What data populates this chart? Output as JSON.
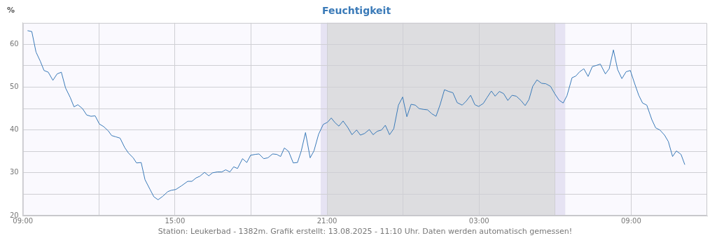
{
  "chart_data": {
    "type": "line",
    "title": "Feuchtigkeit",
    "ylabel": "%",
    "annotations": [
      "Station: Leukerbad - 1382m. Grafik erstellt: 13.08.2025 - 11:10 Uhr. Daten werden automatisch gemessen!"
    ],
    "x": [
      "2025-08-12T09:11",
      "2025-08-12T09:21",
      "2025-08-12T09:31",
      "2025-08-12T09:41",
      "2025-08-12T09:50",
      "2025-08-12T10:00",
      "2025-08-12T10:11",
      "2025-08-12T10:21",
      "2025-08-12T10:31",
      "2025-08-12T10:41",
      "2025-08-12T10:52",
      "2025-08-12T11:01",
      "2025-08-12T11:10",
      "2025-08-12T11:21",
      "2025-08-12T11:31",
      "2025-08-12T11:41",
      "2025-08-12T11:51",
      "2025-08-12T12:01",
      "2025-08-12T12:11",
      "2025-08-12T12:22",
      "2025-08-12T12:30",
      "2025-08-12T12:40",
      "2025-08-12T12:50",
      "2025-08-12T13:01",
      "2025-08-12T13:10",
      "2025-08-12T13:21",
      "2025-08-12T13:29",
      "2025-08-12T13:40",
      "2025-08-12T13:49",
      "2025-08-12T14:01",
      "2025-08-12T14:10",
      "2025-08-12T14:20",
      "2025-08-12T14:31",
      "2025-08-12T14:43",
      "2025-08-12T14:51",
      "2025-08-12T15:02",
      "2025-08-12T15:16",
      "2025-08-12T15:30",
      "2025-08-12T15:40",
      "2025-08-12T15:50",
      "2025-08-12T15:59",
      "2025-08-12T16:10",
      "2025-08-12T16:20",
      "2025-08-12T16:29",
      "2025-08-12T16:40",
      "2025-08-12T16:51",
      "2025-08-12T17:00",
      "2025-08-12T17:10",
      "2025-08-12T17:19",
      "2025-08-12T17:28",
      "2025-08-12T17:40",
      "2025-08-12T17:50",
      "2025-08-12T17:59",
      "2025-08-12T18:10",
      "2025-08-12T18:19",
      "2025-08-12T18:30",
      "2025-08-12T18:40",
      "2025-08-12T18:51",
      "2025-08-12T19:01",
      "2025-08-12T19:10",
      "2025-08-12T19:19",
      "2025-08-12T19:29",
      "2025-08-12T19:40",
      "2025-08-12T19:50",
      "2025-08-12T19:59",
      "2025-08-12T20:09",
      "2025-08-12T20:20",
      "2025-08-12T20:29",
      "2025-08-12T20:40",
      "2025-08-12T20:51",
      "2025-08-12T21:01",
      "2025-08-12T21:10",
      "2025-08-12T21:19",
      "2025-08-12T21:28",
      "2025-08-12T21:38",
      "2025-08-12T21:49",
      "2025-08-12T21:59",
      "2025-08-12T22:10",
      "2025-08-12T22:19",
      "2025-08-12T22:29",
      "2025-08-12T22:40",
      "2025-08-12T22:49",
      "2025-08-12T22:59",
      "2025-08-12T23:09",
      "2025-08-12T23:18",
      "2025-08-12T23:28",
      "2025-08-12T23:38",
      "2025-08-12T23:49",
      "2025-08-12T23:59",
      "2025-08-13T00:09",
      "2025-08-13T00:19",
      "2025-08-13T00:29",
      "2025-08-13T00:38",
      "2025-08-13T00:49",
      "2025-08-13T00:58",
      "2025-08-13T01:08",
      "2025-08-13T01:18",
      "2025-08-13T01:28",
      "2025-08-13T01:38",
      "2025-08-13T01:48",
      "2025-08-13T01:58",
      "2025-08-13T02:08",
      "2025-08-13T02:20",
      "2025-08-13T02:30",
      "2025-08-13T02:40",
      "2025-08-13T02:50",
      "2025-08-13T02:59",
      "2025-08-13T03:10",
      "2025-08-13T03:19",
      "2025-08-13T03:29",
      "2025-08-13T03:38",
      "2025-08-13T03:48",
      "2025-08-13T03:58",
      "2025-08-13T04:08",
      "2025-08-13T04:18",
      "2025-08-13T04:28",
      "2025-08-13T04:39",
      "2025-08-13T04:49",
      "2025-08-13T04:58",
      "2025-08-13T05:07",
      "2025-08-13T05:17",
      "2025-08-13T05:28",
      "2025-08-13T05:38",
      "2025-08-13T05:49",
      "2025-08-13T05:59",
      "2025-08-13T06:09",
      "2025-08-13T06:19",
      "2025-08-13T06:28",
      "2025-08-13T06:40",
      "2025-08-13T06:49",
      "2025-08-13T06:58",
      "2025-08-13T07:08",
      "2025-08-13T07:18",
      "2025-08-13T07:28",
      "2025-08-13T07:38",
      "2025-08-13T07:47",
      "2025-08-13T07:59",
      "2025-08-13T08:08",
      "2025-08-13T08:18",
      "2025-08-13T08:28",
      "2025-08-13T08:38",
      "2025-08-13T08:48",
      "2025-08-13T08:58",
      "2025-08-13T09:08",
      "2025-08-13T09:18",
      "2025-08-13T09:27",
      "2025-08-13T09:37",
      "2025-08-13T09:49",
      "2025-08-13T09:58",
      "2025-08-13T10:08",
      "2025-08-13T10:19",
      "2025-08-13T10:28",
      "2025-08-13T10:38",
      "2025-08-13T10:47",
      "2025-08-13T10:58",
      "2025-08-13T11:07"
    ],
    "series": [
      {
        "color": "#3a7ab8",
        "values": [
          63.2,
          63.0,
          58.2,
          56.1,
          53.9,
          53.5,
          51.6,
          53.1,
          53.5,
          49.8,
          47.6,
          45.4,
          45.9,
          45.0,
          43.5,
          43.2,
          43.3,
          41.4,
          40.8,
          39.8,
          38.7,
          38.4,
          38.1,
          35.9,
          34.6,
          33.5,
          32.3,
          32.4,
          28.4,
          26.1,
          24.4,
          23.7,
          24.5,
          25.6,
          25.9,
          26.1,
          27.0,
          28.0,
          28.0,
          28.8,
          29.2,
          30.1,
          29.3,
          30.0,
          30.2,
          30.2,
          30.7,
          30.2,
          31.4,
          31.0,
          33.3,
          32.4,
          34.1,
          34.3,
          34.4,
          33.3,
          33.5,
          34.4,
          34.3,
          33.8,
          35.8,
          35.0,
          32.3,
          32.4,
          35.1,
          39.4,
          33.5,
          35.1,
          39.0,
          41.3,
          41.8,
          42.8,
          41.7,
          40.9,
          42.1,
          40.6,
          38.9,
          40.0,
          38.8,
          39.2,
          40.1,
          38.9,
          39.7,
          40.0,
          41.1,
          38.9,
          40.3,
          45.8,
          47.7,
          43.1,
          46.0,
          45.8,
          45.0,
          44.8,
          44.7,
          43.8,
          43.2,
          46.0,
          49.4,
          49.0,
          48.7,
          46.4,
          45.8,
          46.8,
          48.1,
          45.9,
          45.5,
          46.2,
          47.6,
          49.1,
          47.9,
          49.0,
          48.5,
          46.9,
          48.1,
          47.9,
          46.9,
          45.7,
          47.1,
          50.2,
          51.7,
          50.9,
          50.8,
          50.2,
          48.5,
          47.0,
          46.3,
          48.0,
          52.2,
          52.6,
          53.6,
          54.3,
          52.5,
          54.8,
          55.1,
          55.4,
          53.1,
          54.3,
          58.7,
          54.1,
          52.0,
          53.6,
          53.9,
          50.9,
          48.1,
          46.3,
          45.8,
          42.4,
          40.5,
          40.0,
          38.8,
          37.3,
          33.8,
          35.1,
          34.3,
          31.9
        ]
      }
    ],
    "xlim": [
      "2025-08-12T09:00",
      "2025-08-13T12:00"
    ],
    "xticks": [
      {
        "value": "2025-08-12T09:00",
        "label": "09:00"
      },
      {
        "value": "2025-08-12T12:00",
        "label": null
      },
      {
        "value": "2025-08-12T15:00",
        "label": "15:00"
      },
      {
        "value": "2025-08-12T18:00",
        "label": null
      },
      {
        "value": "2025-08-12T21:00",
        "label": "21:00"
      },
      {
        "value": "2025-08-13T00:00",
        "label": null
      },
      {
        "value": "2025-08-13T03:00",
        "label": "03:00"
      },
      {
        "value": "2025-08-13T06:00",
        "label": null
      },
      {
        "value": "2025-08-13T09:00",
        "label": "09:00"
      }
    ],
    "ylim": [
      20,
      65
    ],
    "yticks": [
      20,
      {
        "value": 25,
        "label": null
      },
      30,
      {
        "value": 35,
        "label": null
      },
      40,
      {
        "value": 45,
        "label": null
      },
      50,
      {
        "value": 55,
        "label": null
      },
      60
    ],
    "bands": [
      {
        "axis": "x",
        "from": "2025-08-12T20:45",
        "to": "2025-08-13T06:24",
        "color": "#e6e3f3"
      },
      {
        "axis": "x",
        "from": "2025-08-12T21:00",
        "to": "2025-08-13T06:00",
        "color": "#dddde0"
      }
    ],
    "grid": true,
    "legend": false,
    "marker": "none",
    "line_style": "solid"
  }
}
